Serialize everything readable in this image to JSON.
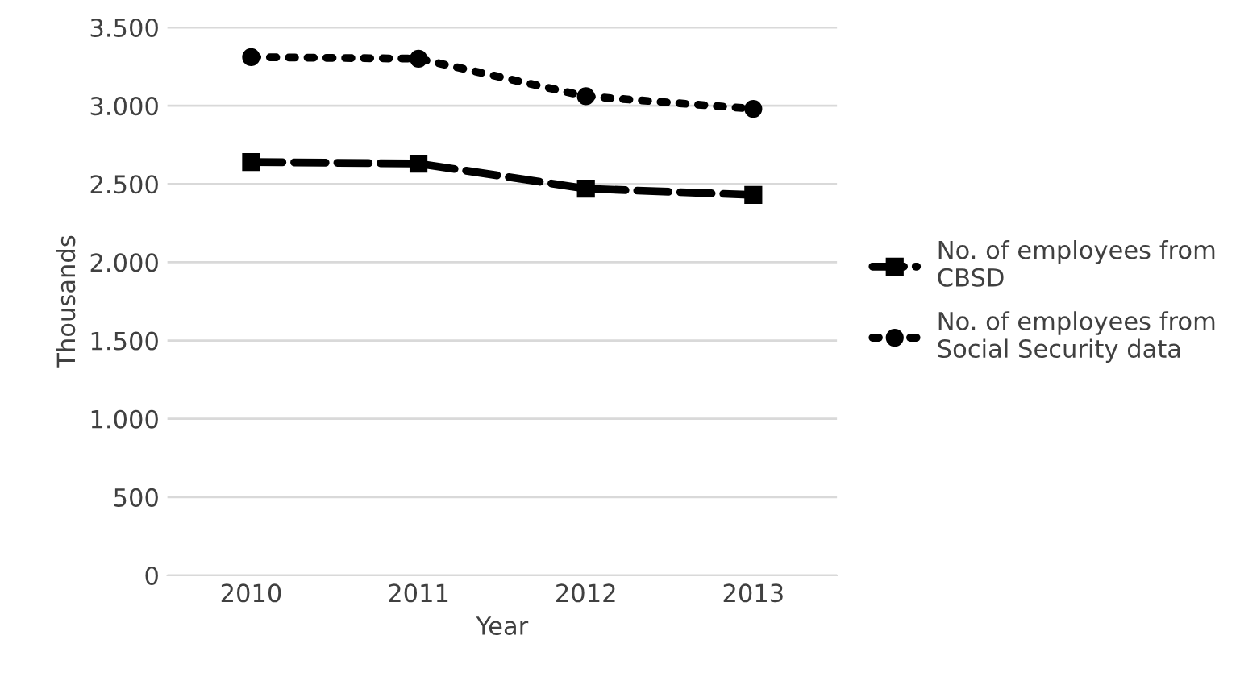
{
  "chart_data": {
    "type": "line",
    "xlabel": "Year",
    "ylabel": "Thousands",
    "categories": [
      "2010",
      "2011",
      "2012",
      "2013"
    ],
    "series": [
      {
        "name": "No. of employees from\nCBSD",
        "color": "#000000",
        "values": [
          2640,
          2630,
          2470,
          2430
        ],
        "marker": "square",
        "line_style": "dashed"
      },
      {
        "name": "No. of employees from\nSocial Security data",
        "color": "#000000",
        "values": [
          3310,
          3300,
          3060,
          2980
        ],
        "marker": "circle",
        "line_style": "dotted"
      }
    ],
    "ylim": [
      0,
      3500
    ],
    "yticks": [
      {
        "value": 0,
        "label": "0"
      },
      {
        "value": 500,
        "label": "500"
      },
      {
        "value": 1000,
        "label": "1.000"
      },
      {
        "value": 1500,
        "label": "1.500"
      },
      {
        "value": 2000,
        "label": "2.000"
      },
      {
        "value": 2500,
        "label": "2.500"
      },
      {
        "value": 3000,
        "label": "3.000"
      },
      {
        "value": 3500,
        "label": "3.500"
      }
    ],
    "grid": "y",
    "legend": "right"
  }
}
